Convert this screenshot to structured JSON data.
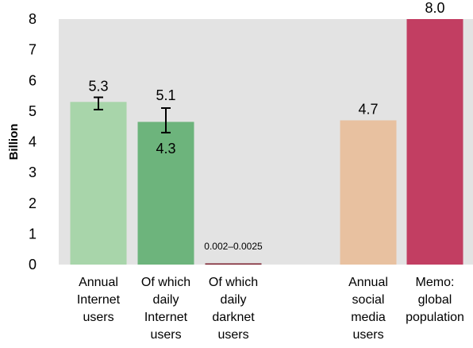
{
  "chart_data": {
    "type": "bar",
    "ylabel": "Billion",
    "ylim": [
      0,
      8
    ],
    "yticks": [
      "0",
      "1",
      "2",
      "3",
      "4",
      "5",
      "6",
      "7",
      "8"
    ],
    "grid": false,
    "legend": "none",
    "categories": [
      {
        "lines": [
          "Annual",
          "Internet",
          "users"
        ],
        "value": 5.3,
        "color": "#a8d5aa",
        "labels": [
          "5.3"
        ],
        "error": [
          5.05,
          5.45
        ]
      },
      {
        "lines": [
          "Of which",
          "daily",
          "Internet",
          "users"
        ],
        "value": 4.65,
        "color": "#6db47c",
        "labels": [
          "5.1",
          "4.3"
        ],
        "error": [
          4.3,
          5.1
        ]
      },
      {
        "lines": [
          "Of which",
          "daily",
          "darknet",
          "users"
        ],
        "value": 0.0025,
        "color": "#7a1e2c",
        "labels": [
          "0.002–0.0025"
        ],
        "error": null
      },
      {
        "lines": [
          ""
        ],
        "value": null,
        "color": null,
        "labels": [],
        "error": null
      },
      {
        "lines": [
          "Annual",
          "social",
          "media",
          "users"
        ],
        "value": 4.7,
        "color": "#e8c1a0",
        "labels": [
          "4.7"
        ],
        "error": null
      },
      {
        "lines": [
          "Memo:",
          "global",
          "population"
        ],
        "value": 8.0,
        "color": "#c23e62",
        "labels": [
          "8.0"
        ],
        "error": null
      }
    ],
    "colors": {
      "plot_background": "#e3e3e3"
    }
  }
}
